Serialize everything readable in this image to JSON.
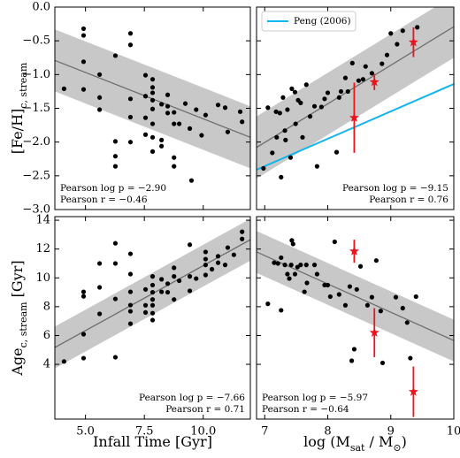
{
  "chart_data": [
    {
      "type": "scatter",
      "color": "#000000",
      "x": [
        4.09,
        4.92,
        4.92,
        4.92,
        4.92,
        5.6,
        5.6,
        5.6,
        6.27,
        6.27,
        6.27,
        6.27,
        6.91,
        6.91,
        6.91,
        6.91,
        6.91,
        7.55,
        7.55,
        7.55,
        7.55,
        7.85,
        7.85,
        7.85,
        7.85,
        7.85,
        7.85,
        7.85,
        7.85,
        8.23,
        8.23,
        8.23,
        8.49,
        8.49,
        8.49,
        8.76,
        8.76,
        8.76,
        8.76,
        8.98,
        9.24,
        9.43,
        9.5,
        9.7,
        9.93,
        10.1,
        10.63,
        10.93,
        11.04,
        11.57,
        11.65
      ],
      "values": [
        -1.21,
        -0.32,
        -0.42,
        -0.81,
        -1.22,
        -1.0,
        -1.34,
        -1.52,
        -0.72,
        -1.99,
        -2.21,
        -2.36,
        -0.39,
        -0.56,
        -1.36,
        -1.63,
        -2.0,
        -1.01,
        -1.32,
        -1.64,
        -1.89,
        -1.07,
        -1.19,
        -1.27,
        -1.38,
        -1.51,
        -1.73,
        -1.93,
        -2.14,
        -1.44,
        -1.97,
        -2.06,
        -1.3,
        -1.47,
        -1.57,
        -1.56,
        -1.73,
        -2.23,
        -2.36,
        -1.73,
        -1.43,
        -1.8,
        -2.57,
        -1.52,
        -1.9,
        -1.6,
        -1.45,
        -1.49,
        -1.85,
        -1.55,
        -1.7
      ],
      "fit": {
        "color": "#6e6e6e",
        "band_color": "#c8c8c8",
        "x": [
          3.7,
          12.0
        ],
        "values": [
          -0.79,
          -1.93
        ],
        "band_upper": [
          -0.33,
          -1.47
        ],
        "band_lower": [
          -1.25,
          -2.39
        ]
      },
      "xlim": [
        3.7,
        12.0
      ],
      "xticks": [
        5,
        7.5,
        10
      ],
      "show_xticklabels": false,
      "ylim": [
        -3.0,
        0.0
      ],
      "yticks": [
        {
          "value": 0,
          "label": "0.0"
        },
        {
          "value": -0.5,
          "label": "−0.5"
        },
        {
          "value": -1.0,
          "label": "−1.0"
        },
        {
          "value": -1.5,
          "label": "−1.5"
        },
        {
          "value": -2.0,
          "label": "−2.0"
        },
        {
          "value": -2.5,
          "label": "−2.5"
        },
        {
          "value": -3.0,
          "label": "−3.0"
        }
      ],
      "show_yticklabels": true,
      "ylabel": [
        {
          "text": "[Fe/H]",
          "sub": false
        },
        {
          "text": "c, stream",
          "sub": true
        }
      ],
      "annotations": [
        "Pearson log p = −2.90",
        "Pearson r = −0.46"
      ],
      "annotation_loc": "lower left"
    },
    {
      "type": "scatter",
      "color": "#000000",
      "x": [
        6.98,
        7.05,
        7.12,
        7.18,
        7.19,
        7.24,
        7.26,
        7.29,
        7.32,
        7.33,
        7.36,
        7.41,
        7.43,
        7.48,
        7.49,
        7.53,
        7.57,
        7.6,
        7.66,
        7.72,
        7.79,
        7.83,
        7.9,
        7.95,
        8.0,
        8.14,
        8.18,
        8.21,
        8.28,
        8.32,
        8.39,
        8.49,
        8.56,
        8.6,
        8.7,
        8.86,
        8.94,
        9.0,
        9.1,
        9.19,
        9.42
      ],
      "values": [
        -2.39,
        -1.49,
        -2.16,
        -1.55,
        -1.93,
        -1.57,
        -2.52,
        -1.34,
        -1.83,
        -1.97,
        -1.52,
        -2.23,
        -1.21,
        -1.26,
        -1.73,
        -1.38,
        -1.42,
        -1.93,
        -1.15,
        -1.62,
        -1.47,
        -2.36,
        -1.48,
        -1.36,
        -1.27,
        -2.15,
        -1.34,
        -1.25,
        -1.05,
        -1.25,
        -0.83,
        -1.09,
        -1.07,
        -0.88,
        -0.98,
        -0.84,
        -0.71,
        -0.39,
        -0.55,
        -0.35,
        -0.3
      ],
      "fit": {
        "color": "#6e6e6e",
        "band_color": "#c8c8c8",
        "x": [
          6.87,
          10.0
        ],
        "values": [
          -2.08,
          -0.29
        ],
        "band_upper": [
          -1.62,
          0.17
        ],
        "band_lower": [
          -2.54,
          -0.75
        ]
      },
      "stars": {
        "color": "#e8141e",
        "x": [
          8.42,
          8.74,
          9.36
        ],
        "values": [
          -1.64,
          -1.11,
          -0.52
        ],
        "errors": [
          0.52,
          0.12,
          0.22
        ]
      },
      "series": [
        {
          "name": "Peng (2006)",
          "color": "#14b4ec",
          "x": [
            6.87,
            10.0
          ],
          "values": [
            -2.41,
            -1.14
          ]
        }
      ],
      "legend_loc": "upper left",
      "xlim": [
        6.87,
        10.0
      ],
      "xticks": [
        7,
        8,
        9,
        10
      ],
      "show_xticklabels": false,
      "ylim": [
        -3.0,
        0.0
      ],
      "yticks": [
        0,
        -0.5,
        -1.0,
        -1.5,
        -2.0,
        -2.5,
        -3.0
      ],
      "show_yticklabels": false,
      "annotations": [
        "Pearson log p = −9.15",
        "Pearson r = 0.76"
      ],
      "annotation_loc": "lower right"
    },
    {
      "type": "scatter",
      "color": "#000000",
      "x": [
        4.09,
        4.92,
        4.92,
        4.92,
        4.92,
        5.6,
        5.6,
        5.6,
        6.27,
        6.27,
        6.27,
        6.27,
        6.91,
        6.91,
        6.91,
        6.91,
        6.91,
        6.91,
        7.55,
        7.55,
        7.55,
        7.85,
        7.85,
        7.85,
        7.85,
        7.85,
        7.85,
        7.85,
        8.23,
        8.23,
        8.49,
        8.49,
        8.76,
        8.76,
        8.76,
        8.98,
        9.43,
        9.43,
        9.43,
        9.7,
        10.1,
        10.1,
        10.1,
        10.1,
        10.37,
        10.63,
        10.63,
        10.93,
        11.04,
        11.3,
        11.65,
        11.65
      ],
      "values": [
        4.2,
        9.03,
        8.72,
        6.09,
        4.43,
        7.5,
        9.34,
        11.0,
        8.54,
        4.49,
        11.0,
        12.4,
        9.03,
        8.11,
        7.68,
        6.82,
        11.67,
        10.26,
        9.2,
        8.1,
        7.6,
        10.1,
        9.5,
        9.0,
        8.5,
        8.1,
        7.55,
        7.07,
        9.03,
        9.9,
        9.6,
        9.0,
        10.7,
        10.1,
        8.5,
        9.8,
        12.3,
        10.1,
        9.1,
        9.95,
        10.9,
        11.3,
        10.2,
        11.8,
        10.6,
        11.5,
        11.05,
        10.9,
        12.1,
        11.6,
        13.2,
        12.7
      ],
      "fit": {
        "color": "#6e6e6e",
        "band_color": "#c8c8c8",
        "x": [
          3.7,
          12.0
        ],
        "values": [
          5.17,
          12.65
        ],
        "band_upper": [
          6.62,
          14.1
        ],
        "band_lower": [
          3.72,
          11.2
        ]
      },
      "xlim": [
        3.7,
        12.0
      ],
      "xticks": [
        {
          "value": 5,
          "label": "5.0"
        },
        {
          "value": 7.5,
          "label": "7.5"
        },
        {
          "value": 10,
          "label": "10.0"
        }
      ],
      "show_xticklabels": true,
      "ylim": [
        0.2,
        14.25
      ],
      "yticks": [
        4,
        6,
        8,
        10,
        12,
        14
      ],
      "show_yticklabels": true,
      "xlabel": [
        {
          "text": "Infall Time [Gyr]",
          "sub": false
        }
      ],
      "ylabel": [
        {
          "text": "Age",
          "sub": false
        },
        {
          "text": "c, stream",
          "sub": true
        },
        {
          "text": " [Gyr]",
          "sub": false
        }
      ],
      "annotations": [
        "Pearson log p = −7.66",
        "Pearson r = 0.71"
      ],
      "annotation_loc": "lower right"
    },
    {
      "type": "scatter",
      "color": "#000000",
      "x": [
        7.05,
        7.15,
        7.21,
        7.26,
        7.26,
        7.32,
        7.36,
        7.39,
        7.42,
        7.43,
        7.45,
        7.48,
        7.52,
        7.57,
        7.63,
        7.66,
        7.67,
        7.79,
        7.83,
        7.95,
        8.0,
        8.04,
        8.11,
        8.18,
        8.28,
        8.35,
        8.38,
        8.42,
        8.46,
        8.52,
        8.63,
        8.7,
        8.77,
        8.84,
        8.87,
        9.08,
        9.19,
        9.26,
        9.4,
        9.31
      ],
      "values": [
        8.2,
        11.05,
        11.0,
        11.4,
        7.75,
        10.9,
        10.26,
        9.95,
        10.9,
        12.6,
        12.35,
        10.26,
        10.75,
        10.9,
        9.03,
        10.9,
        9.65,
        10.9,
        10.26,
        9.5,
        9.5,
        8.7,
        12.5,
        8.85,
        8.1,
        9.4,
        4.25,
        5.05,
        9.2,
        10.8,
        8.1,
        8.66,
        11.2,
        7.7,
        4.1,
        8.66,
        7.9,
        6.9,
        8.7,
        4.43
      ],
      "fit": {
        "color": "#6e6e6e",
        "band_color": "#c8c8c8",
        "x": [
          6.87,
          10.0
        ],
        "values": [
          11.8,
          5.65
        ],
        "band_upper": [
          13.25,
          7.1
        ],
        "band_lower": [
          10.35,
          4.2
        ]
      },
      "stars": {
        "color": "#e8141e",
        "x": [
          8.42,
          8.74,
          9.36
        ],
        "values": [
          11.85,
          6.2,
          2.1
        ],
        "errors": [
          0.8,
          1.7,
          1.75
        ]
      },
      "xlim": [
        6.87,
        10.0
      ],
      "xticks": [
        7,
        8,
        9,
        10
      ],
      "show_xticklabels": true,
      "ylim": [
        0.2,
        14.25
      ],
      "yticks": [
        4,
        6,
        8,
        10,
        12,
        14
      ],
      "show_yticklabels": false,
      "xlabel": [
        {
          "text": "log (",
          "sub": false
        },
        {
          "text": "M",
          "sub": false
        },
        {
          "text": "sat",
          "sub": true
        },
        {
          "text": " / M",
          "sub": false
        },
        {
          "text": "⊙",
          "sub": true
        },
        {
          "text": ")",
          "sub": false
        }
      ],
      "annotations": [
        "Pearson log p = −5.97",
        "Pearson r = −0.64"
      ],
      "annotation_loc": "lower left"
    }
  ]
}
